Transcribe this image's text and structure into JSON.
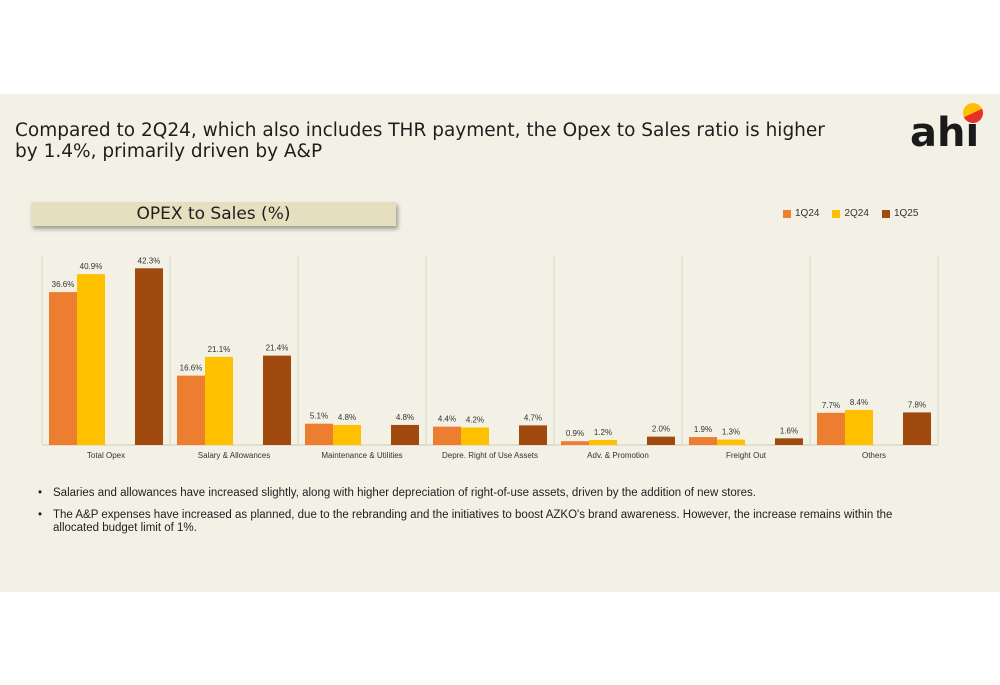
{
  "headline": "Compared to 2Q24, which also includes THR payment, the Opex to Sales ratio is higher by 1.4%, primarily driven by A&P",
  "logo": {
    "text": "ahi"
  },
  "colors": {
    "background": "#f3f1e5",
    "title_box": "#e5dfc0",
    "1Q24": "#ed7d31",
    "2Q24": "#ffc000",
    "1Q25": "#a04a10"
  },
  "chart_data": {
    "type": "bar",
    "title": "OPEX to Sales (%)",
    "legend_position": "top-right",
    "grid": false,
    "categories": [
      "Total Opex",
      "Salary & Allowances",
      "Maintenance & Utilities",
      "Depre. Right of Use Assets",
      "Adv. & Promotion",
      "Freight Out",
      "Others"
    ],
    "ylim": [
      0,
      45
    ],
    "series": [
      {
        "name": "1Q24",
        "color": "#ed7d31",
        "values": [
          36.6,
          16.6,
          5.1,
          4.4,
          0.9,
          1.9,
          7.7
        ],
        "labels": [
          "36.6%",
          "16.6%",
          "5.1%",
          "4.4%",
          "0.9%",
          "1.9%",
          "7.7%"
        ]
      },
      {
        "name": "2Q24",
        "color": "#ffc000",
        "values": [
          40.9,
          21.1,
          4.8,
          4.2,
          1.2,
          1.3,
          8.4
        ],
        "labels": [
          "40.9%",
          "21.1%",
          "4.8%",
          "4.2%",
          "1.2%",
          "1.3%",
          "8.4%"
        ]
      },
      {
        "name": "1Q25",
        "color": "#a04a10",
        "values": [
          42.3,
          21.4,
          4.8,
          4.7,
          2.0,
          1.6,
          7.8
        ],
        "labels": [
          "42.3%",
          "21.4%",
          "4.8%",
          "4.7%",
          "2.0%",
          "1.6%",
          "7.8%"
        ]
      }
    ]
  },
  "bullets": [
    "Salaries and allowances have increased slightly, along with higher depreciation of right-of-use assets, driven by the addition of new stores.",
    "The A&P expenses have increased as planned, due to the rebranding and the initiatives to boost AZKO's brand awareness. However, the increase remains within the allocated budget limit of 1%."
  ]
}
